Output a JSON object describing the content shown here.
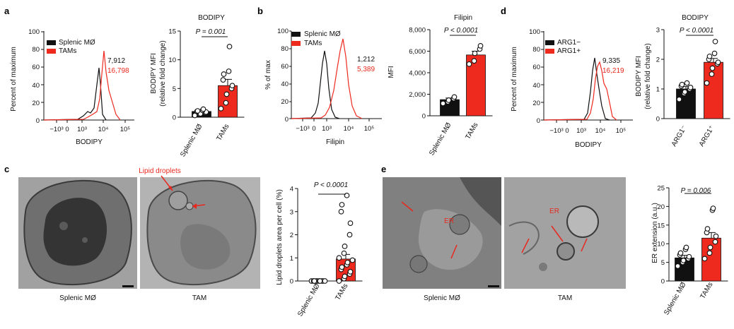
{
  "colors": {
    "black_series": "#111111",
    "red_series": "#ee2a1f",
    "em_gray": "#9a9a9a"
  },
  "panel_a": {
    "label": "a",
    "histogram": {
      "ylabel": "Percent of maximum",
      "xlabel": "BODIPY",
      "yticks": [
        "0",
        "20",
        "40",
        "60",
        "80",
        "100"
      ],
      "xticks": [
        "−10³",
        "0",
        "10³",
        "10⁴",
        "10⁵"
      ],
      "legend": [
        "Splenic MØ",
        "TAMs"
      ],
      "value_black": "7,912",
      "value_red": "16,798"
    },
    "bar": {
      "title": "BODIPY",
      "ylabel": "BODIPY MFI",
      "ylabel2": "(relative fold change)",
      "yticks": [
        "0",
        "5",
        "10",
        "15"
      ],
      "categories": [
        "Splenic MØ",
        "TAMs"
      ],
      "pvalue": "P = 0.001"
    }
  },
  "panel_b": {
    "label": "b",
    "histogram": {
      "ylabel": "% of max",
      "xlabel": "Filipin",
      "yticks": [
        "0",
        "20",
        "40",
        "60",
        "80",
        "100"
      ],
      "xticks": [
        "−10³",
        "0",
        "10³",
        "10⁴",
        "10⁵"
      ],
      "legend": [
        "Splenic MØ",
        "TAMs"
      ],
      "value_black": "1,212",
      "value_red": "5,389"
    },
    "bar": {
      "title": "Filipin",
      "ylabel": "MFI",
      "yticks": [
        "0",
        "2,000",
        "4,000",
        "6,000",
        "8,000"
      ],
      "categories": [
        "Splenic MØ",
        "TAMs"
      ],
      "pvalue": "P < 0.0001"
    }
  },
  "panel_d": {
    "label": "d",
    "histogram": {
      "ylabel": "Percent of maximum",
      "xlabel": "BODIPY",
      "yticks": [
        "0",
        "20",
        "40",
        "60",
        "80",
        "100"
      ],
      "xticks": [
        "−10³",
        "0",
        "10³",
        "10⁴",
        "10⁵"
      ],
      "legend": [
        "ARG1−",
        "ARG1+"
      ],
      "value_black": "9,335",
      "value_red": "16,219"
    },
    "bar": {
      "title": "BODIPY",
      "ylabel": "BODIPY MFI",
      "ylabel2": "(relative fold change)",
      "yticks": [
        "0",
        "1",
        "2",
        "3"
      ],
      "categories": [
        "ARG1⁻",
        "ARG1⁺"
      ],
      "pvalue": "P < 0.0001"
    }
  },
  "panel_c": {
    "label": "c",
    "annotation": "Lipid droplets",
    "image_captions": [
      "Splenic MØ",
      "TAM"
    ],
    "bar": {
      "ylabel": "Lipid droplets area per cell (%)",
      "yticks": [
        "0",
        "1",
        "2",
        "3",
        "4"
      ],
      "categories": [
        "Splenic MØ",
        "TAMs"
      ],
      "pvalue": "P < 0.0001"
    }
  },
  "panel_e": {
    "label": "e",
    "er_label": "ER",
    "image_captions": [
      "Splenic MØ",
      "TAM"
    ],
    "bar": {
      "ylabel": "ER extension (a.u.)",
      "yticks": [
        "0",
        "5",
        "10",
        "15",
        "20",
        "25"
      ],
      "categories": [
        "Splenic MØ",
        "TAMs"
      ],
      "pvalue": "P = 0.006"
    }
  },
  "chart_data": [
    {
      "type": "bar",
      "panel": "a",
      "title": "BODIPY",
      "ylabel": "BODIPY MFI (relative fold change)",
      "ylim": [
        0,
        15
      ],
      "categories": [
        "Splenic MØ",
        "TAMs"
      ],
      "values": [
        1.0,
        5.5
      ],
      "errors": [
        0.2,
        1.1
      ],
      "points": [
        [
          0.3,
          0.5,
          0.6,
          0.8,
          0.9,
          1.0,
          1.1,
          1.2,
          1.4
        ],
        [
          1.5,
          2.5,
          4.0,
          5.0,
          5.5,
          6.5,
          7.5,
          8.0,
          12.3
        ]
      ]
    },
    {
      "type": "bar",
      "panel": "b",
      "title": "Filipin",
      "ylabel": "MFI",
      "ylim": [
        0,
        8000
      ],
      "categories": [
        "Splenic MØ",
        "TAMs"
      ],
      "values": [
        1500,
        5650
      ],
      "errors": [
        150,
        350
      ],
      "points": [
        [
          1150,
          1300,
          1450,
          1600,
          1750
        ],
        [
          4800,
          5100,
          5800,
          6200,
          6500
        ]
      ]
    },
    {
      "type": "bar",
      "panel": "d",
      "title": "BODIPY",
      "ylabel": "BODIPY MFI (relative fold change)",
      "ylim": [
        0,
        3
      ],
      "categories": [
        "ARG1⁻",
        "ARG1⁺"
      ],
      "values": [
        1.0,
        1.9
      ],
      "errors": [
        0.08,
        0.13
      ],
      "points": [
        [
          0.65,
          0.85,
          0.9,
          1.0,
          1.05,
          1.1,
          1.15,
          1.2
        ],
        [
          1.2,
          1.5,
          1.7,
          1.85,
          1.9,
          2.0,
          2.1,
          2.2,
          2.6
        ]
      ]
    },
    {
      "type": "bar",
      "panel": "c",
      "ylabel": "Lipid droplets area per cell (%)",
      "ylim": [
        0,
        4
      ],
      "categories": [
        "Splenic MØ",
        "TAMs"
      ],
      "values": [
        0.0,
        0.95
      ],
      "errors": [
        0.0,
        0.2
      ],
      "points": [
        [
          0,
          0,
          0,
          0,
          0,
          0,
          0,
          0,
          0,
          0
        ],
        [
          0.0,
          0.1,
          0.2,
          0.3,
          0.4,
          0.5,
          0.6,
          0.7,
          0.8,
          0.9,
          1.0,
          1.2,
          1.5,
          2.0,
          2.5,
          3.0,
          3.3,
          3.7
        ]
      ]
    },
    {
      "type": "bar",
      "panel": "e",
      "ylabel": "ER extension (a.u.)",
      "ylim": [
        0,
        25
      ],
      "categories": [
        "Splenic MØ",
        "TAMs"
      ],
      "values": [
        6.2,
        11.5
      ],
      "errors": [
        0.7,
        1.5
      ],
      "points": [
        [
          4.0,
          5.0,
          5.5,
          6.0,
          6.5,
          7.0,
          7.5,
          8.5,
          9.0
        ],
        [
          6.0,
          7.5,
          9.0,
          10.5,
          12.0,
          13.0,
          14.0,
          19.0,
          19.5
        ]
      ]
    },
    {
      "type": "line",
      "panel": "a",
      "description": "flow cytometry histogram",
      "series": [
        {
          "name": "Splenic MØ",
          "peak_x": "7,912"
        },
        {
          "name": "TAMs",
          "peak_x": "16,798"
        }
      ]
    },
    {
      "type": "line",
      "panel": "b",
      "description": "flow cytometry histogram",
      "series": [
        {
          "name": "Splenic MØ",
          "peak_x": "1,212"
        },
        {
          "name": "TAMs",
          "peak_x": "5,389"
        }
      ]
    },
    {
      "type": "line",
      "panel": "d",
      "description": "flow cytometry histogram",
      "series": [
        {
          "name": "ARG1−",
          "peak_x": "9,335"
        },
        {
          "name": "ARG1+",
          "peak_x": "16,219"
        }
      ]
    }
  ]
}
